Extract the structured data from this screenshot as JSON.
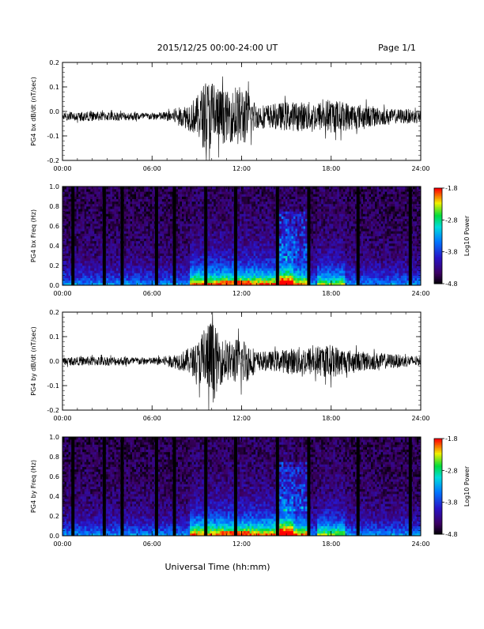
{
  "header": {
    "title": "2015/12/25  00:00-24:00 UT",
    "page": "Page 1/1"
  },
  "footer": {
    "xlabel": "Universal Time (hh:mm)"
  },
  "chart_data": [
    {
      "type": "line",
      "ylabel": "PG4 bx dB/dt (nT/sec)",
      "ylim": [
        -0.2,
        0.2
      ],
      "yticks": [
        "0.2",
        "0.1",
        "0.0",
        "-0.1",
        "-0.2"
      ],
      "yticks_values": [
        0.2,
        0.1,
        0.0,
        -0.1,
        -0.2
      ],
      "xlim": [
        "00:00",
        "24:00"
      ],
      "xticks": [
        "00:00",
        "06:00",
        "12:00",
        "18:00",
        "24:00"
      ],
      "baseline": -0.02,
      "envelope": {
        "hours": [
          0,
          2,
          4,
          6,
          7,
          8,
          9,
          9.5,
          10,
          10.5,
          11,
          11.5,
          12,
          12.5,
          13,
          14,
          15,
          16,
          17,
          18,
          19,
          20,
          22,
          24
        ],
        "amplitude": [
          0.015,
          0.02,
          0.018,
          0.015,
          0.02,
          0.04,
          0.08,
          0.14,
          0.16,
          0.12,
          0.1,
          0.11,
          0.13,
          0.1,
          0.05,
          0.05,
          0.06,
          0.06,
          0.06,
          0.07,
          0.06,
          0.05,
          0.03,
          0.03
        ]
      }
    },
    {
      "type": "heatmap",
      "ylabel": "PG4 bx Freq (Hz)",
      "ylim": [
        0.0,
        1.0
      ],
      "yticks": [
        "1.0",
        "0.8",
        "0.6",
        "0.4",
        "0.2",
        "0.0"
      ],
      "yticks_values": [
        1.0,
        0.8,
        0.6,
        0.4,
        0.2,
        0.0
      ],
      "xticks": [
        "00:00",
        "06:00",
        "12:00",
        "18:00",
        "24:00"
      ],
      "colorbar": {
        "label": "Log10 Power",
        "range": [
          -4.8,
          -1.8
        ],
        "ticks": [
          "-1.8",
          "-2.8",
          "-3.8",
          "-4.8"
        ],
        "tick_values": [
          -1.8,
          -2.8,
          -3.8,
          -4.8
        ]
      },
      "gap_hours": [
        0.7,
        2.8,
        4.0,
        6.3,
        7.5,
        9.6,
        11.6,
        14.4,
        16.5,
        19.8,
        23.3
      ]
    },
    {
      "type": "line",
      "ylabel": "PG4 by dB/dt (nT/sec)",
      "ylim": [
        -0.2,
        0.2
      ],
      "yticks": [
        "0.2",
        "0.1",
        "0.0",
        "-0.1",
        "-0.2"
      ],
      "yticks_values": [
        0.2,
        0.1,
        0.0,
        -0.1,
        -0.2
      ],
      "xlim": [
        "00:00",
        "24:00"
      ],
      "xticks": [
        "00:00",
        "06:00",
        "12:00",
        "18:00",
        "24:00"
      ],
      "baseline": 0.0,
      "envelope": {
        "hours": [
          0,
          2,
          4,
          6,
          7,
          8,
          9,
          9.5,
          10,
          10.5,
          11,
          11.5,
          12,
          12.5,
          13,
          14,
          15,
          16,
          17,
          18,
          19,
          20,
          22,
          24
        ],
        "amplitude": [
          0.015,
          0.02,
          0.018,
          0.015,
          0.02,
          0.04,
          0.07,
          0.15,
          0.18,
          0.1,
          0.08,
          0.09,
          0.1,
          0.08,
          0.04,
          0.04,
          0.05,
          0.06,
          0.06,
          0.07,
          0.05,
          0.04,
          0.03,
          0.02
        ]
      }
    },
    {
      "type": "heatmap",
      "ylabel": "PG4 by Freq (Hz)",
      "ylim": [
        0.0,
        1.0
      ],
      "yticks": [
        "1.0",
        "0.8",
        "0.6",
        "0.4",
        "0.2",
        "0.0"
      ],
      "yticks_values": [
        1.0,
        0.8,
        0.6,
        0.4,
        0.2,
        0.0
      ],
      "xticks": [
        "00:00",
        "06:00",
        "12:00",
        "18:00",
        "24:00"
      ],
      "colorbar": {
        "label": "Log10 Power",
        "range": [
          -4.8,
          -1.8
        ],
        "ticks": [
          "-1.8",
          "-2.8",
          "-3.8",
          "-4.8"
        ],
        "tick_values": [
          -1.8,
          -2.8,
          -3.8,
          -4.8
        ]
      },
      "gap_hours": [
        0.7,
        2.8,
        4.0,
        6.3,
        7.5,
        9.6,
        11.6,
        14.4,
        16.5,
        19.8,
        23.3
      ]
    }
  ]
}
